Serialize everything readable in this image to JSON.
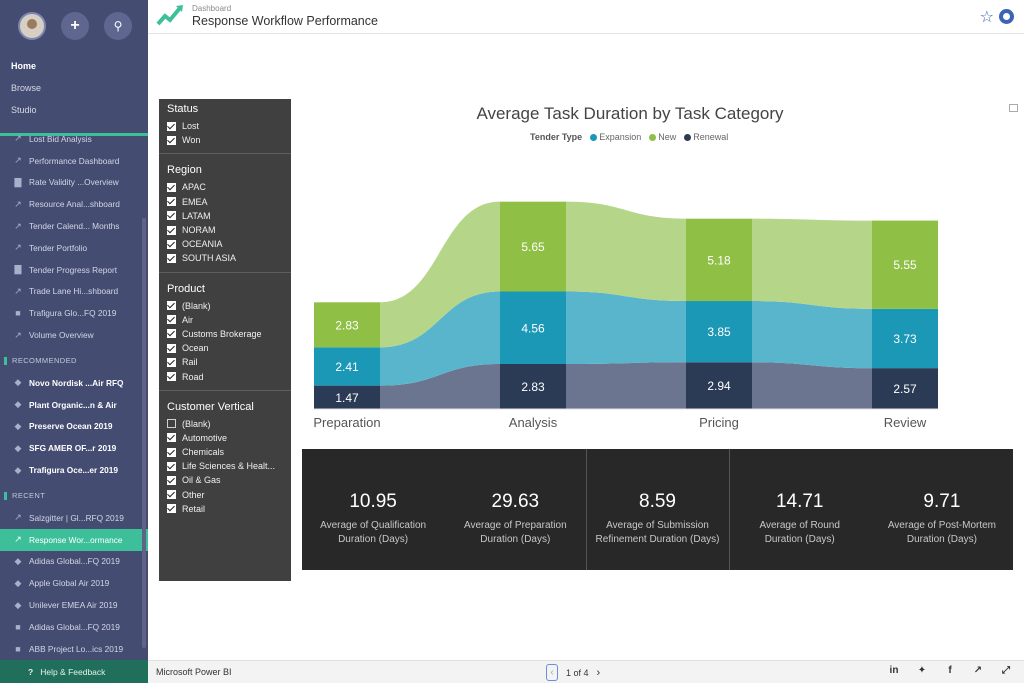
{
  "header": {
    "breadcrumb": "Dashboard",
    "title": "Response Workflow Performance"
  },
  "nav": {
    "main_links": [
      "Home",
      "Browse",
      "Studio"
    ],
    "items": [
      {
        "label": "Lost Bid Analysis",
        "icon": "trend-icon"
      },
      {
        "label": "Performance Dashboard",
        "icon": "trend-icon"
      },
      {
        "label": "Rate Validity ...Overview",
        "icon": "bar-chart-icon"
      },
      {
        "label": "Resource Anal...shboard",
        "icon": "trend-icon"
      },
      {
        "label": "Tender Calend... Months",
        "icon": "trend-icon"
      },
      {
        "label": "Tender Portfolio",
        "icon": "trend-icon"
      },
      {
        "label": "Tender Progress Report",
        "icon": "bar-chart-icon"
      },
      {
        "label": "Trade Lane Hi...shboard",
        "icon": "trend-icon"
      },
      {
        "label": "Trafigura Glo...FQ 2019",
        "icon": "trash-icon"
      },
      {
        "label": "Volume Overview",
        "icon": "trend-icon"
      }
    ],
    "recommended_title": "RECOMMENDED",
    "recommended": [
      "Novo Nordisk ...Air RFQ",
      "Plant Organic...n & Air",
      "Preserve Ocean 2019",
      "SFG AMER OF...r 2019",
      "Trafigura Oce...er 2019"
    ],
    "recent_title": "RECENT",
    "recent": [
      {
        "label": "Salzgitter | Gl...RFQ 2019",
        "icon": "trend-icon",
        "selected": false
      },
      {
        "label": "Response Wor...ormance",
        "icon": "trend-icon",
        "selected": true
      },
      {
        "label": "Adidas Global...FQ 2019",
        "icon": "diamond-icon",
        "selected": false
      },
      {
        "label": "Apple Global Air 2019",
        "icon": "diamond-icon",
        "selected": false
      },
      {
        "label": "Unilever EMEA Air 2019",
        "icon": "diamond-icon",
        "selected": false
      },
      {
        "label": "Adidas Global...FQ 2019",
        "icon": "trash-icon",
        "selected": false
      },
      {
        "label": "ABB Project Lo...ics 2019",
        "icon": "trash-icon",
        "selected": false
      }
    ],
    "footer": "Help & Feedback"
  },
  "filters": [
    {
      "title": "Status",
      "options": [
        {
          "label": "Lost",
          "checked": true
        },
        {
          "label": "Won",
          "checked": true
        }
      ]
    },
    {
      "title": "Region",
      "options": [
        {
          "label": "APAC",
          "checked": true
        },
        {
          "label": "EMEA",
          "checked": true
        },
        {
          "label": "LATAM",
          "checked": true
        },
        {
          "label": "NORAM",
          "checked": true
        },
        {
          "label": "OCEANIA",
          "checked": true
        },
        {
          "label": "SOUTH ASIA",
          "checked": true
        }
      ]
    },
    {
      "title": "Product",
      "options": [
        {
          "label": "(Blank)",
          "checked": true
        },
        {
          "label": "Air",
          "checked": true
        },
        {
          "label": "Customs Brokerage",
          "checked": true
        },
        {
          "label": "Ocean",
          "checked": true
        },
        {
          "label": "Rail",
          "checked": true
        },
        {
          "label": "Road",
          "checked": true
        }
      ]
    },
    {
      "title": "Customer Vertical",
      "options": [
        {
          "label": "(Blank)",
          "checked": false
        },
        {
          "label": "Automotive",
          "checked": true
        },
        {
          "label": "Chemicals",
          "checked": true
        },
        {
          "label": "Life Sciences & Healt...",
          "checked": true
        },
        {
          "label": "Oil & Gas",
          "checked": true
        },
        {
          "label": "Other",
          "checked": true
        },
        {
          "label": "Retail",
          "checked": true
        }
      ]
    }
  ],
  "chart_data": {
    "type": "bar",
    "title": "Average Task Duration by Task Category",
    "legend_title": "Tender Type",
    "categories": [
      "Preparation",
      "Analysis",
      "Pricing",
      "Review"
    ],
    "series": [
      {
        "name": "Renewal",
        "color": "#2b3a55",
        "values": [
          1.47,
          2.83,
          2.94,
          2.57
        ]
      },
      {
        "name": "Expansion",
        "color": "#1b98b5",
        "values": [
          2.41,
          4.56,
          3.85,
          3.73
        ]
      },
      {
        "name": "New",
        "color": "#8fbf45",
        "values": [
          2.83,
          5.65,
          5.18,
          5.55
        ]
      }
    ],
    "legend_order": [
      "Expansion",
      "New",
      "Renewal"
    ],
    "stacked": true,
    "legend_position": "top-center"
  },
  "kpis": [
    {
      "value": "10.95",
      "label_line1": "Average of Qualification",
      "label_line2": "Duration (Days)"
    },
    {
      "value": "29.63",
      "label_line1": "Average of Preparation",
      "label_line2": "Duration (Days)"
    },
    {
      "value": "8.59",
      "label_line1": "Average of Submission",
      "label_line2": "Refinement Duration (Days)"
    },
    {
      "value": "14.71",
      "label_line1": "Average of Round",
      "label_line2": "Duration (Days)"
    },
    {
      "value": "9.71",
      "label_line1": "Average of Post-Mortem",
      "label_line2": "Duration (Days)"
    }
  ],
  "footer": {
    "brand": "Microsoft Power BI",
    "page": "1 of 4"
  }
}
